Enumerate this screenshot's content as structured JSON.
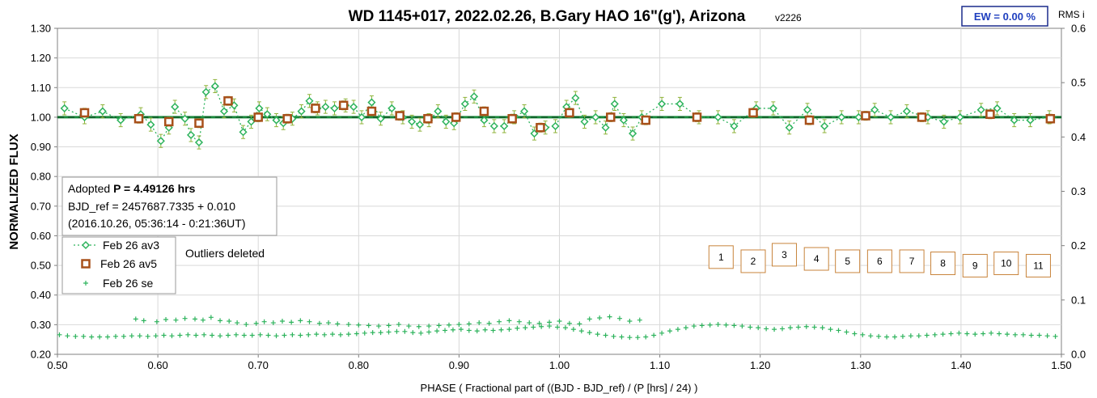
{
  "chart_data": {
    "type": "scatter",
    "title": "WD 1145+017, 2022.02.26, B.Gary HAO 16\"(g'), Arizona",
    "version": "v2226",
    "ew_label": "EW = 0.00 %",
    "rms_label": "RMS i",
    "xlabel": "PHASE ( Fractional part of ((BJD - BJD_ref) / (P [hrs] / 24) )",
    "ylabel": "NORMALIZED FLUX",
    "xlim": [
      0.5,
      1.5
    ],
    "ylim": [
      0.2,
      1.3
    ],
    "y2lim": [
      0.0,
      0.6
    ],
    "grid": true,
    "x_ticks": [
      "0.50",
      "0.60",
      "0.70",
      "0.80",
      "0.90",
      "1.00",
      "1.10",
      "1.20",
      "1.30",
      "1.40",
      "1.50"
    ],
    "y_ticks": [
      "0.20",
      "0.30",
      "0.40",
      "0.50",
      "0.60",
      "0.70",
      "0.80",
      "0.90",
      "1.00",
      "1.10",
      "1.20",
      "1.30"
    ],
    "y2_ticks": [
      "0.0",
      "0.1",
      "0.2",
      "0.3",
      "0.4",
      "0.5",
      "0.6"
    ],
    "reference_line": 1.0,
    "info_box": {
      "line1_prefix": "Adopted ",
      "line1_bold": "P = 4.49126 hrs",
      "line2": "BJD_ref = 2457687.7335 + 0.010",
      "line3": "(2016.10.26, 05:36:14 - 0:21:36UT)"
    },
    "legend": [
      "Feb 26 av3",
      "Feb 26 av5",
      "Feb 26 se"
    ],
    "legend_placement": "left-middle",
    "annotation": "Outliers deleted",
    "numbered_boxes": [
      {
        "label": "1",
        "x": 1.161,
        "y": 0.528
      },
      {
        "label": "2",
        "x": 1.193,
        "y": 0.514
      },
      {
        "label": "3",
        "x": 1.224,
        "y": 0.536
      },
      {
        "label": "4",
        "x": 1.256,
        "y": 0.522
      },
      {
        "label": "5",
        "x": 1.287,
        "y": 0.514
      },
      {
        "label": "6",
        "x": 1.319,
        "y": 0.514
      },
      {
        "label": "7",
        "x": 1.351,
        "y": 0.514
      },
      {
        "label": "8",
        "x": 1.382,
        "y": 0.507
      },
      {
        "label": "9",
        "x": 1.414,
        "y": 0.499
      },
      {
        "label": "10",
        "x": 1.445,
        "y": 0.507
      },
      {
        "label": "11",
        "x": 1.477,
        "y": 0.499
      }
    ],
    "series": [
      {
        "name": "Feb 26 av3",
        "color": "#2db35c",
        "marker": "diamond",
        "line": "dotted",
        "errbar": 0.022,
        "x": [
          0.507,
          0.527,
          0.545,
          0.563,
          0.583,
          0.593,
          0.603,
          0.611,
          0.617,
          0.627,
          0.633,
          0.641,
          0.648,
          0.657,
          0.666,
          0.676,
          0.685,
          0.693,
          0.701,
          0.709,
          0.718,
          0.725,
          0.734,
          0.743,
          0.751,
          0.759,
          0.767,
          0.776,
          0.787,
          0.795,
          0.803,
          0.813,
          0.822,
          0.833,
          0.844,
          0.853,
          0.861,
          0.87,
          0.879,
          0.887,
          0.895,
          0.906,
          0.915,
          0.925,
          0.935,
          0.945,
          0.955,
          0.965,
          0.975,
          0.986,
          0.996,
          1.007,
          1.016,
          1.025,
          1.036,
          1.046,
          1.055,
          1.064,
          1.073,
          1.082,
          1.102,
          1.12,
          1.139,
          1.158,
          1.174,
          1.196,
          1.213,
          1.229,
          1.247,
          1.264,
          1.281,
          1.298,
          1.314,
          1.33,
          1.346,
          1.367,
          1.383,
          1.399,
          1.42,
          1.436,
          1.453,
          1.469,
          1.488
        ],
        "y": [
          1.03,
          1.0,
          1.02,
          0.99,
          1.01,
          0.975,
          0.92,
          0.965,
          1.035,
          0.995,
          0.94,
          0.915,
          1.085,
          1.105,
          1.02,
          1.04,
          0.95,
          0.985,
          1.03,
          1.01,
          0.99,
          0.98,
          0.995,
          1.02,
          1.055,
          1.03,
          1.035,
          1.03,
          1.04,
          1.035,
          1.0,
          1.05,
          0.995,
          1.03,
          1.0,
          0.985,
          0.975,
          0.99,
          1.02,
          0.985,
          0.98,
          1.045,
          1.07,
          0.99,
          0.97,
          0.97,
          1.0,
          1.02,
          0.945,
          0.965,
          0.97,
          1.035,
          1.065,
          0.985,
          1.0,
          0.965,
          1.045,
          0.99,
          0.945,
          1.0,
          1.045,
          1.045,
          1.0,
          1.0,
          0.97,
          1.03,
          1.03,
          0.965,
          1.025,
          0.97,
          1.0,
          1.0,
          1.025,
          1.0,
          1.02,
          1.0,
          0.985,
          1.0,
          1.025,
          1.03,
          0.99,
          0.99,
          1.0
        ]
      },
      {
        "name": "Feb 26 av5",
        "color": "#a8501a",
        "marker": "square",
        "line": "none",
        "errbar": 0.015,
        "x": [
          0.527,
          0.581,
          0.611,
          0.641,
          0.67,
          0.7,
          0.729,
          0.757,
          0.785,
          0.813,
          0.841,
          0.869,
          0.897,
          0.925,
          0.953,
          0.981,
          1.01,
          1.051,
          1.086,
          1.137,
          1.193,
          1.249,
          1.305,
          1.361,
          1.429,
          1.489
        ],
        "y": [
          1.015,
          0.995,
          0.985,
          0.98,
          1.055,
          1.0,
          0.995,
          1.03,
          1.04,
          1.02,
          1.005,
          0.995,
          1.0,
          1.02,
          0.995,
          0.965,
          1.015,
          1.0,
          0.99,
          1.0,
          1.015,
          0.99,
          1.005,
          1.0,
          1.01,
          0.995
        ]
      },
      {
        "name": "Feb 26 se",
        "color": "#2db35c",
        "marker": "plus",
        "line": "none",
        "y_axis": "secondary",
        "x": [
          0.502,
          0.51,
          0.518,
          0.526,
          0.534,
          0.542,
          0.55,
          0.558,
          0.566,
          0.574,
          0.582,
          0.59,
          0.598,
          0.606,
          0.614,
          0.622,
          0.63,
          0.638,
          0.646,
          0.654,
          0.662,
          0.67,
          0.678,
          0.686,
          0.694,
          0.702,
          0.71,
          0.718,
          0.726,
          0.734,
          0.742,
          0.75,
          0.758,
          0.766,
          0.774,
          0.782,
          0.79,
          0.798,
          0.806,
          0.814,
          0.822,
          0.83,
          0.838,
          0.846,
          0.854,
          0.862,
          0.87,
          0.878,
          0.886,
          0.894,
          0.902,
          0.91,
          0.918,
          0.926,
          0.934,
          0.942,
          0.95,
          0.958,
          0.966,
          0.974,
          0.982,
          0.99,
          0.998,
          1.006,
          1.014,
          1.022,
          1.03,
          1.038,
          1.046,
          1.054,
          1.062,
          1.07,
          1.078,
          1.086,
          1.094,
          1.102,
          1.11,
          1.118,
          1.126,
          1.134,
          1.142,
          1.15,
          1.158,
          1.166,
          1.174,
          1.182,
          1.19,
          1.198,
          1.206,
          1.214,
          1.222,
          1.23,
          1.238,
          1.246,
          1.254,
          1.262,
          1.27,
          1.278,
          1.286,
          1.294,
          1.302,
          1.31,
          1.318,
          1.326,
          1.334,
          1.342,
          1.35,
          1.358,
          1.366,
          1.374,
          1.382,
          1.39,
          1.398,
          1.406,
          1.414,
          1.422,
          1.43,
          1.438,
          1.446,
          1.454,
          1.462,
          1.47,
          1.478,
          1.486,
          1.494,
          0.578,
          0.586,
          0.599,
          0.608,
          0.618,
          0.627,
          0.637,
          0.645,
          0.653,
          0.662,
          0.671,
          0.679,
          0.688,
          0.698,
          0.706,
          0.715,
          0.724,
          0.733,
          0.742,
          0.751,
          0.761,
          0.77,
          0.779,
          0.79,
          0.8,
          0.81,
          0.82,
          0.83,
          0.84,
          0.85,
          0.86,
          0.87,
          0.88,
          0.89,
          0.9,
          0.91,
          0.92,
          0.93,
          0.94,
          0.95,
          0.96,
          0.97,
          0.98,
          0.99,
          1.0,
          1.01,
          1.02,
          1.03,
          1.04,
          1.05,
          1.06,
          1.07,
          1.08
        ],
        "y": [
          0.036,
          0.034,
          0.033,
          0.033,
          0.032,
          0.032,
          0.032,
          0.033,
          0.033,
          0.034,
          0.034,
          0.033,
          0.034,
          0.035,
          0.034,
          0.035,
          0.036,
          0.035,
          0.036,
          0.035,
          0.034,
          0.035,
          0.036,
          0.035,
          0.035,
          0.036,
          0.035,
          0.034,
          0.035,
          0.036,
          0.035,
          0.036,
          0.037,
          0.036,
          0.037,
          0.036,
          0.037,
          0.038,
          0.039,
          0.04,
          0.04,
          0.041,
          0.042,
          0.042,
          0.04,
          0.039,
          0.041,
          0.043,
          0.044,
          0.045,
          0.046,
          0.044,
          0.043,
          0.045,
          0.044,
          0.045,
          0.046,
          0.048,
          0.049,
          0.05,
          0.051,
          0.052,
          0.05,
          0.049,
          0.046,
          0.043,
          0.04,
          0.037,
          0.035,
          0.033,
          0.032,
          0.031,
          0.031,
          0.032,
          0.035,
          0.039,
          0.043,
          0.046,
          0.049,
          0.052,
          0.053,
          0.054,
          0.055,
          0.054,
          0.053,
          0.052,
          0.05,
          0.049,
          0.047,
          0.046,
          0.047,
          0.049,
          0.05,
          0.051,
          0.05,
          0.049,
          0.046,
          0.044,
          0.041,
          0.038,
          0.036,
          0.034,
          0.033,
          0.032,
          0.032,
          0.033,
          0.034,
          0.034,
          0.035,
          0.036,
          0.037,
          0.038,
          0.039,
          0.038,
          0.037,
          0.038,
          0.039,
          0.038,
          0.037,
          0.036,
          0.036,
          0.035,
          0.035,
          0.034,
          0.033,
          0.065,
          0.062,
          0.06,
          0.064,
          0.063,
          0.066,
          0.065,
          0.063,
          0.068,
          0.062,
          0.061,
          0.058,
          0.055,
          0.057,
          0.06,
          0.058,
          0.061,
          0.059,
          0.062,
          0.06,
          0.057,
          0.058,
          0.056,
          0.055,
          0.054,
          0.053,
          0.052,
          0.053,
          0.055,
          0.052,
          0.051,
          0.052,
          0.053,
          0.054,
          0.055,
          0.056,
          0.058,
          0.057,
          0.06,
          0.062,
          0.06,
          0.058,
          0.057,
          0.059,
          0.061,
          0.057,
          0.056,
          0.065,
          0.067,
          0.069,
          0.066,
          0.061,
          0.063
        ]
      }
    ]
  }
}
